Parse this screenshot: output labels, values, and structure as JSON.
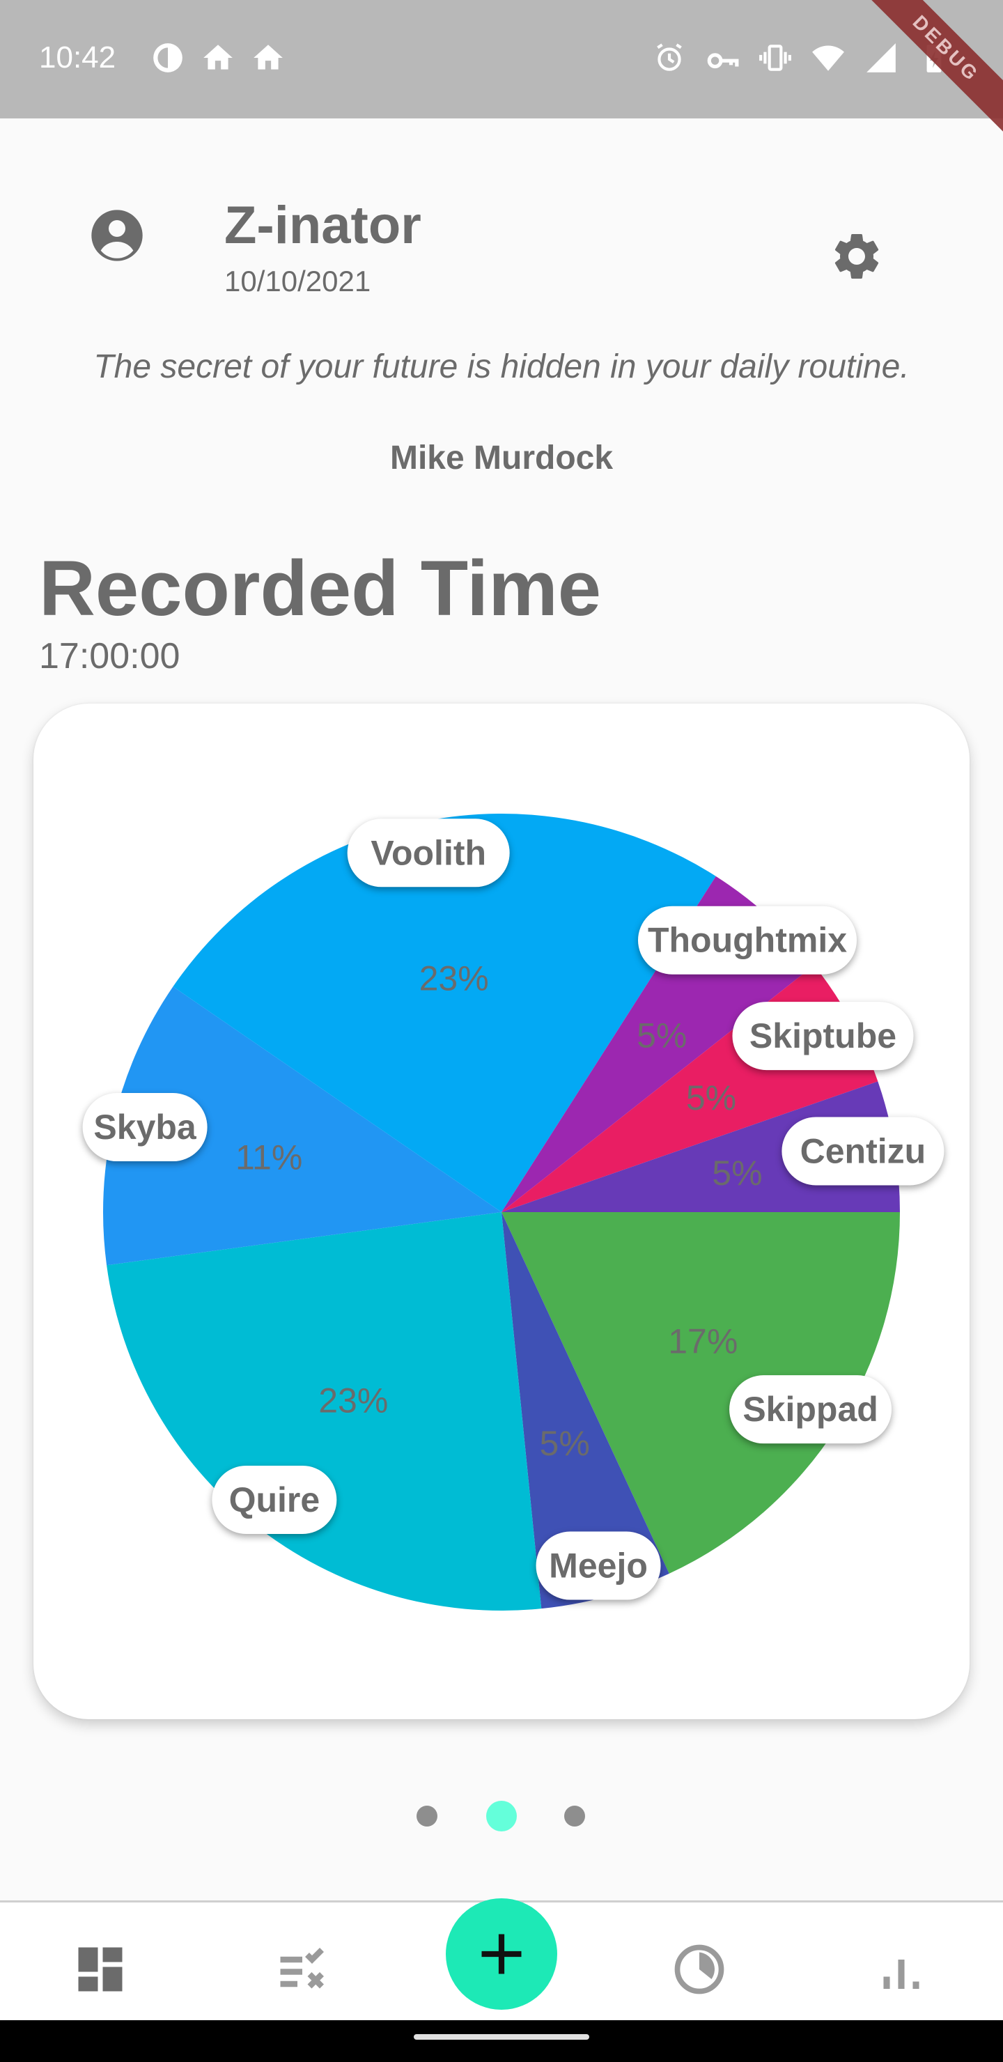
{
  "status_bar": {
    "time": "10:42",
    "left_icons": [
      "data-saver-icon",
      "home-icon",
      "home-icon"
    ],
    "right_icons": [
      "alarm-icon",
      "vpn-key-icon",
      "vibrate-icon",
      "wifi-icon",
      "signal-icon",
      "battery-charging-icon"
    ],
    "debug_label": "DEBUG"
  },
  "header": {
    "title": "Z-inator",
    "date": "10/10/2021",
    "avatar_icon": "account-circle-icon",
    "settings_icon": "gear-icon"
  },
  "quote": {
    "text": "The secret of your future is hidden in your daily routine.",
    "author": "Mike Murdock"
  },
  "recorded_time": {
    "title": "Recorded Time",
    "total": "17:00:00"
  },
  "chart_data": {
    "type": "pie",
    "title": "Recorded Time",
    "start": "east, clockwise",
    "slices": [
      {
        "name": "Skippad",
        "percent_label": "17%",
        "value": 17,
        "color": "#4caf50"
      },
      {
        "name": "Meejo",
        "percent_label": "5%",
        "value": 5,
        "color": "#3f51b5"
      },
      {
        "name": "Quire",
        "percent_label": "23%",
        "value": 23,
        "color": "#00bcd4"
      },
      {
        "name": "Skyba",
        "percent_label": "11%",
        "value": 11,
        "color": "#2196f3"
      },
      {
        "name": "Voolith",
        "percent_label": "23%",
        "value": 23,
        "color": "#03a9f4"
      },
      {
        "name": "Thoughtmix",
        "percent_label": "5%",
        "value": 5,
        "color": "#9c27b0"
      },
      {
        "name": "Skiptube",
        "percent_label": "5%",
        "value": 5,
        "color": "#e91e63"
      },
      {
        "name": "Centizu",
        "percent_label": "5%",
        "value": 5,
        "color": "#673ab7"
      }
    ]
  },
  "pager": {
    "pages": 3,
    "active": 2
  },
  "bottom_nav": {
    "items": [
      "dashboard-icon",
      "tasks-icon",
      "add-icon",
      "timer-icon",
      "stats-icon"
    ],
    "accent": "#1de9b6"
  }
}
